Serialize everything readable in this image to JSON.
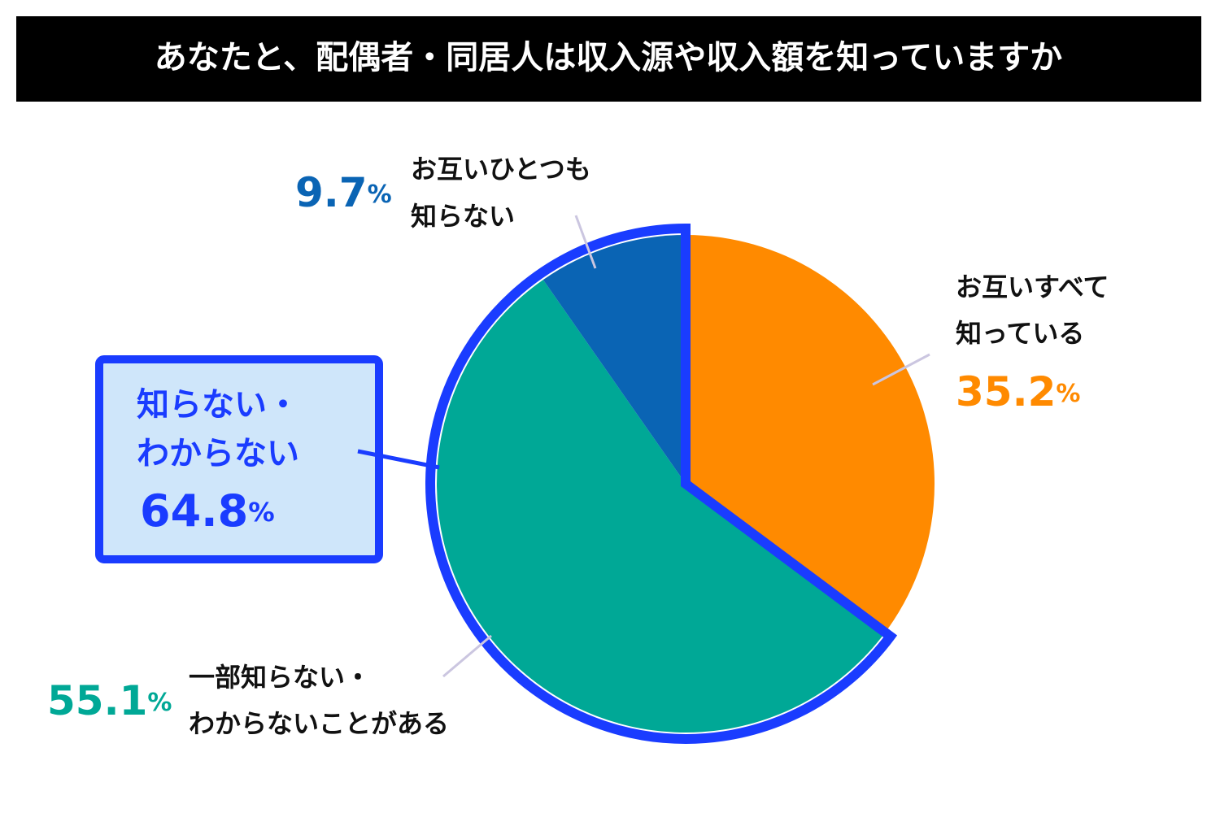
{
  "chart_data": {
    "type": "pie",
    "title": "あなたと、配偶者・同居人は収入源や収入額を知っていますか",
    "categories": [
      [
        "お互いすべて",
        "知っている"
      ],
      [
        "一部知らない・",
        "わからないことがある"
      ],
      [
        "お互いひとつも",
        "知らない"
      ]
    ],
    "values": [
      35.2,
      55.1,
      9.7
    ],
    "value_labels": [
      "35.2%",
      "55.1%",
      "9.7%"
    ],
    "colors": [
      "#ff8a00",
      "#00a896",
      "#0a64b4"
    ],
    "highlight": {
      "label": [
        "知らない・",
        "わからない"
      ],
      "value": 64.8,
      "value_label": "64.8%",
      "color": "#1a3cff"
    }
  }
}
